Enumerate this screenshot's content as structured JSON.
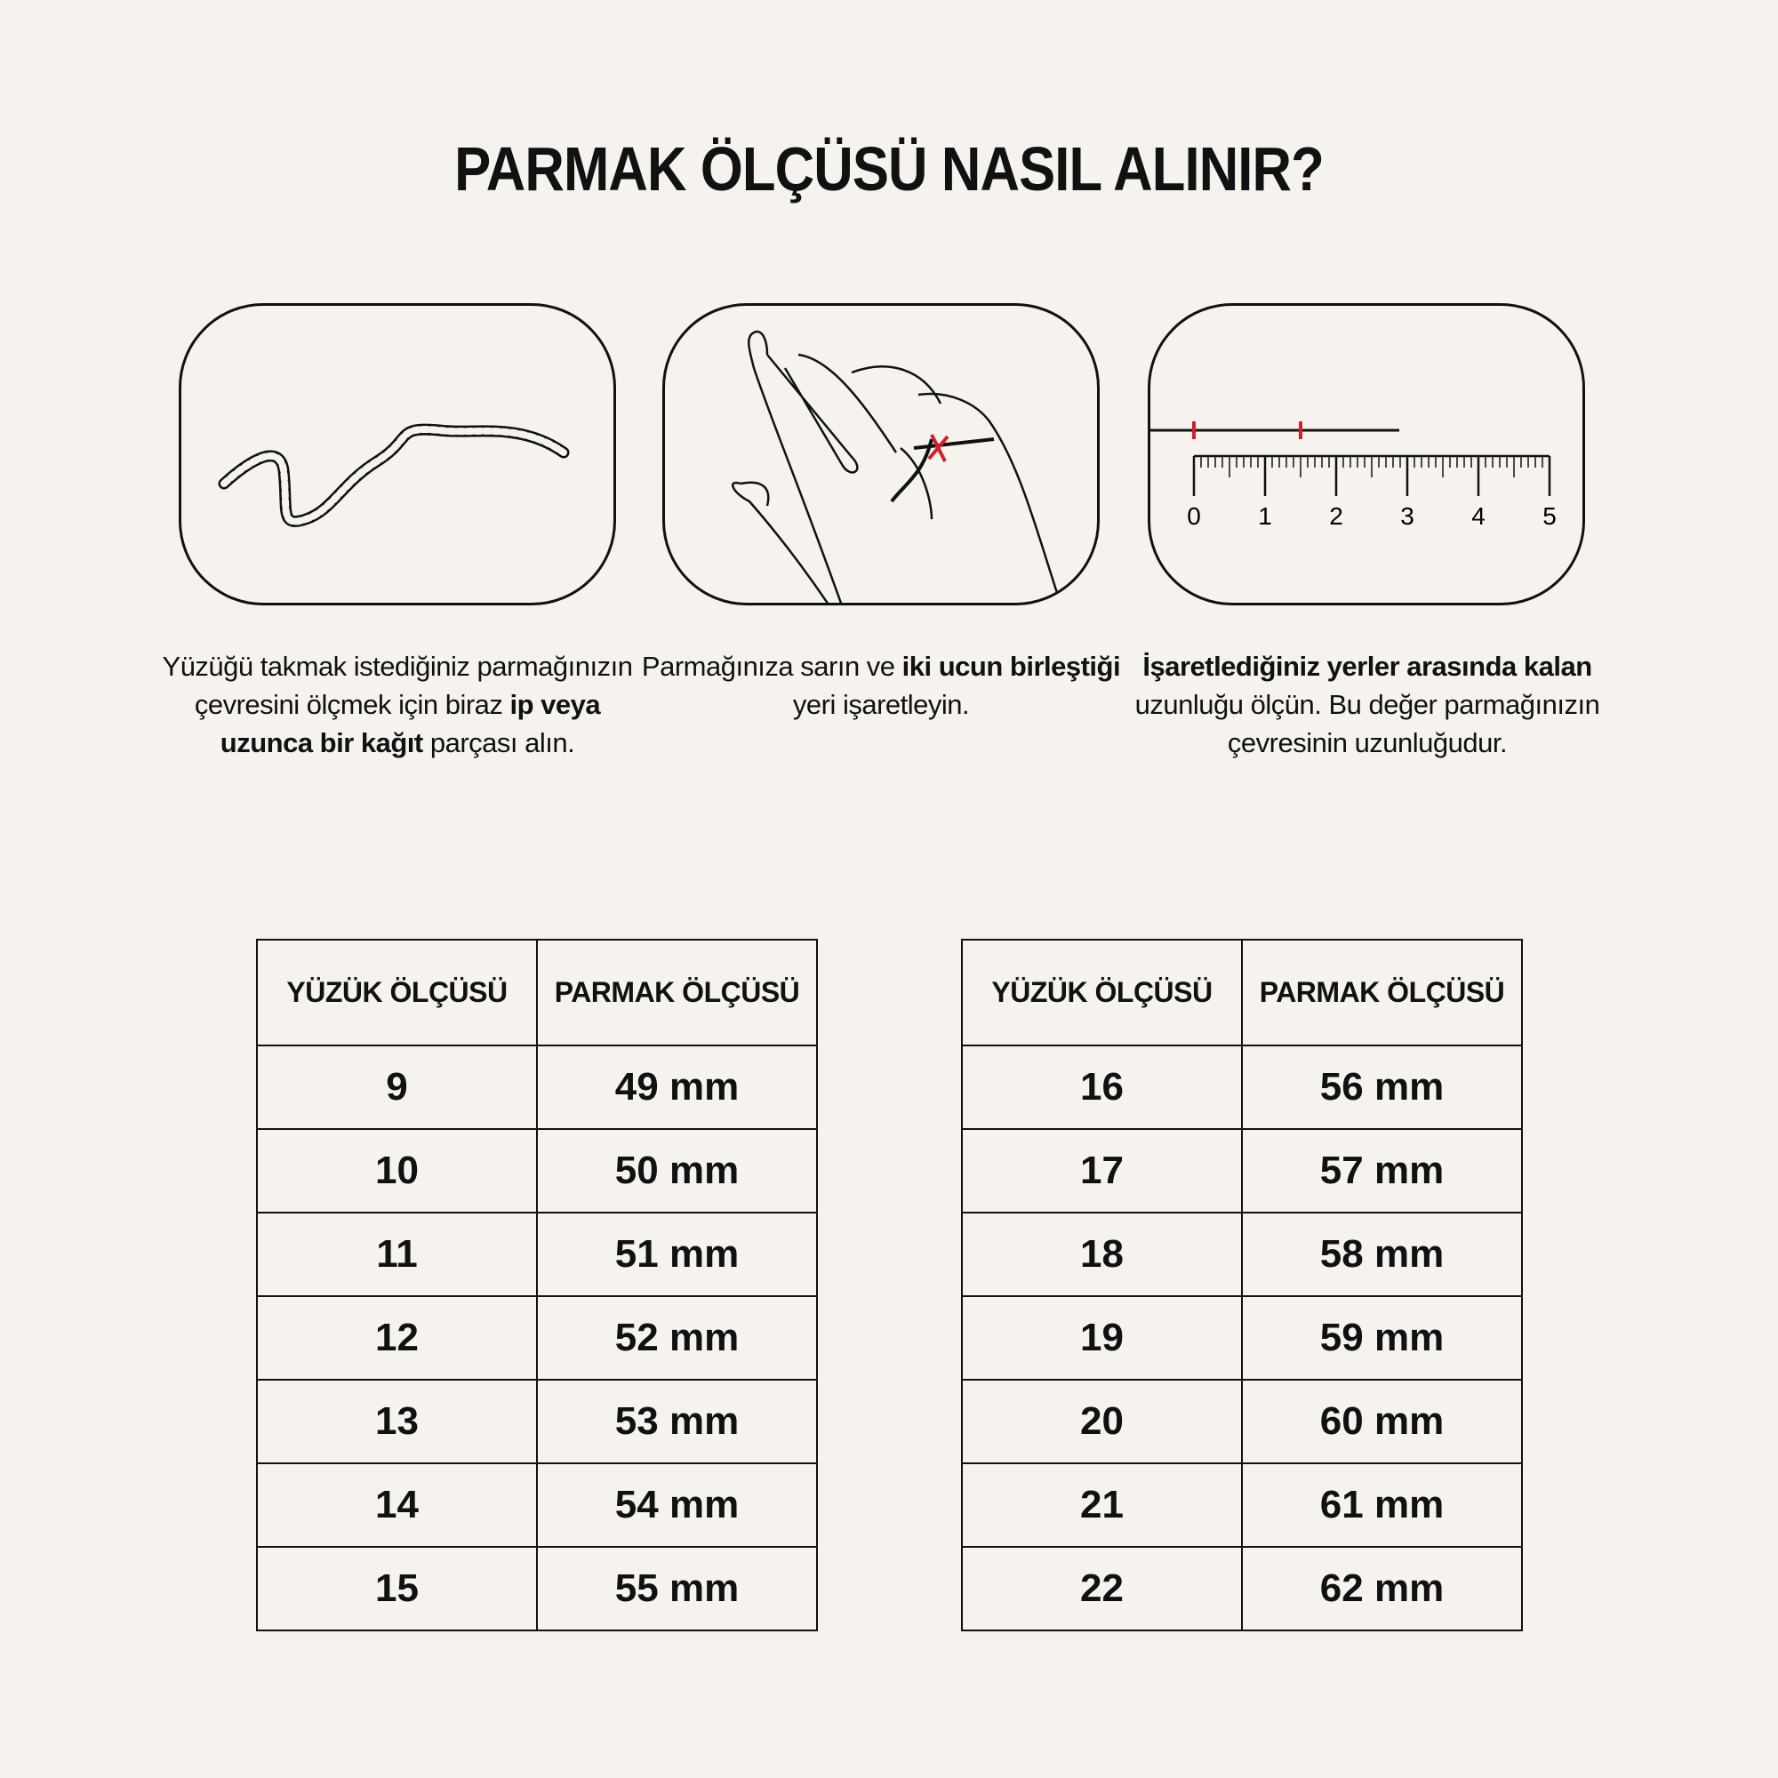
{
  "title": "PARMAK ÖLÇÜSÜ NASIL ALINIR?",
  "steps": [
    {
      "icon": "rope-icon",
      "caption": [
        {
          "text": "Yüzüğü takmak istediğiniz parmağınızın çevresini ölçmek için biraz ",
          "bold": false
        },
        {
          "text": "ip veya uzunca bir kağıt",
          "bold": true
        },
        {
          "text": " parçası alın.",
          "bold": false
        }
      ]
    },
    {
      "icon": "hand-wrap-icon",
      "caption": [
        {
          "text": "Parmağınıza sarın ve ",
          "bold": false
        },
        {
          "text": "iki ucun birleştiği",
          "bold": true
        },
        {
          "text": " yeri işaretleyin.",
          "bold": false
        }
      ]
    },
    {
      "icon": "ruler-icon",
      "ruler_labels": [
        "0",
        "1",
        "2",
        "3",
        "4",
        "5"
      ],
      "caption": [
        {
          "text": "İşaretlediğiniz yerler arasında kalan",
          "bold": true
        },
        {
          "text": " uzunluğu ölçün. Bu değer parmağınızın çevresinin uzunluğudur.",
          "bold": false
        }
      ]
    }
  ],
  "colors": {
    "background": "#f6f3ee",
    "mark": "#d0202a",
    "line": "#111111"
  },
  "tables": [
    {
      "headers": [
        "YÜZÜK ÖLÇÜSÜ",
        "PARMAK ÖLÇÜSÜ"
      ],
      "rows": [
        [
          "9",
          "49 mm"
        ],
        [
          "10",
          "50 mm"
        ],
        [
          "11",
          "51 mm"
        ],
        [
          "12",
          "52 mm"
        ],
        [
          "13",
          "53 mm"
        ],
        [
          "14",
          "54 mm"
        ],
        [
          "15",
          "55 mm"
        ]
      ]
    },
    {
      "headers": [
        "YÜZÜK ÖLÇÜSÜ",
        "PARMAK ÖLÇÜSÜ"
      ],
      "rows": [
        [
          "16",
          "56 mm"
        ],
        [
          "17",
          "57 mm"
        ],
        [
          "18",
          "58 mm"
        ],
        [
          "19",
          "59 mm"
        ],
        [
          "20",
          "60 mm"
        ],
        [
          "21",
          "61 mm"
        ],
        [
          "22",
          "62 mm"
        ]
      ]
    }
  ]
}
